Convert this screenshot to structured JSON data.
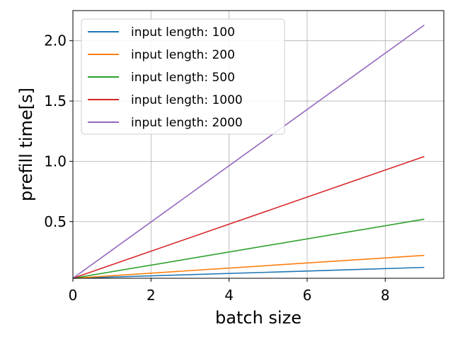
{
  "chart_data": {
    "type": "line",
    "xlabel": "batch size",
    "ylabel": "prefill time[s]",
    "xlim": [
      0,
      9.5
    ],
    "ylim": [
      0.03,
      2.25
    ],
    "x_ticks": [
      0,
      2,
      4,
      6,
      8
    ],
    "y_ticks": [
      0.5,
      1.0,
      1.5,
      2.0
    ],
    "x_tick_labels": [
      "0",
      "2",
      "4",
      "6",
      "8"
    ],
    "y_tick_labels": [
      "0.5",
      "1.0",
      "1.5",
      "2.0"
    ],
    "grid": true,
    "legend_position": "upper-left",
    "x": [
      0,
      9
    ],
    "series": [
      {
        "name": "input length: 100",
        "color": "#1f77b4",
        "values": [
          0.03,
          0.12
        ]
      },
      {
        "name": "input length: 200",
        "color": "#ff7f0e",
        "values": [
          0.03,
          0.22
        ]
      },
      {
        "name": "input length: 500",
        "color": "#2ca02c",
        "values": [
          0.03,
          0.52
        ]
      },
      {
        "name": "input length: 1000",
        "color": "#d62728",
        "values": [
          0.03,
          1.04
        ]
      },
      {
        "name": "input length: 2000",
        "color": "#9467bd",
        "values": [
          0.03,
          2.13
        ]
      }
    ]
  }
}
